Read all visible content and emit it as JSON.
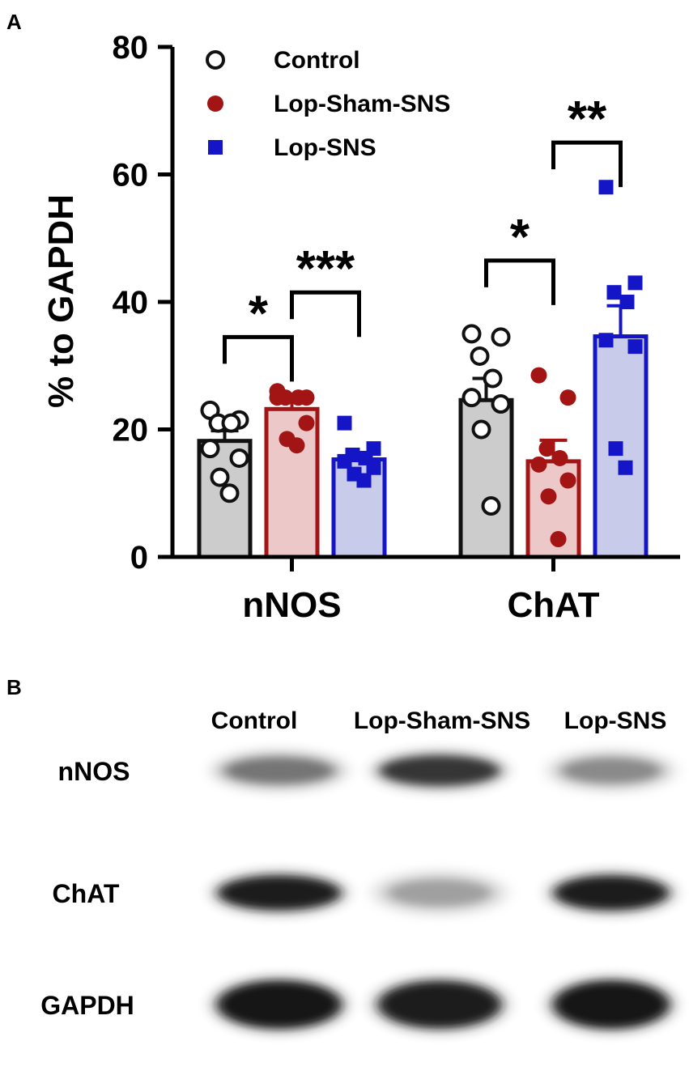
{
  "panels": {
    "a_label": "A",
    "b_label": "B"
  },
  "chart_data": {
    "type": "bar",
    "ylabel": "% to GAPDH",
    "xlabel": "",
    "ylim": [
      0,
      80
    ],
    "yticks": [
      "0",
      "20",
      "40",
      "60",
      "80"
    ],
    "categories": [
      "nNOS",
      "ChAT"
    ],
    "legend_position": "top-left",
    "grid": false,
    "series": [
      {
        "name": "Control",
        "color": "#111111",
        "fill": "#cccccc",
        "marker": "open-circle",
        "values": [
          18.2,
          24.6
        ],
        "sem": [
          1.6,
          3.4
        ],
        "points": [
          [
            23.0,
            21.5,
            21.0,
            21.0,
            17.0,
            15.5,
            12.5,
            10.0
          ],
          [
            35.0,
            34.5,
            31.5,
            28.0,
            25.0,
            24.0,
            20.0,
            8.0
          ]
        ]
      },
      {
        "name": "Lop-Sham-SNS",
        "color": "#a31515",
        "fill": "#ecc8c8",
        "marker": "filled-circle",
        "values": [
          23.2,
          15.0
        ],
        "sem": [
          1.3,
          3.3
        ],
        "points": [
          [
            26.0,
            25.0,
            25.0,
            25.0,
            25.0,
            21.0,
            18.5,
            17.5
          ],
          [
            28.5,
            25.0,
            17.0,
            15.5,
            14.5,
            12.0,
            9.5,
            2.8
          ]
        ]
      },
      {
        "name": "Lop-SNS",
        "color": "#1515c8",
        "fill": "#c8cbea",
        "marker": "filled-square",
        "values": [
          15.3,
          34.6
        ],
        "sem": [
          1.0,
          4.8
        ],
        "points": [
          [
            21.0,
            17.0,
            16.0,
            15.5,
            15.0,
            14.0,
            13.0,
            12.0
          ],
          [
            58.0,
            43.0,
            41.5,
            40.0,
            34.0,
            33.0,
            17.0,
            14.0
          ]
        ]
      }
    ],
    "annotations": [
      {
        "label": "*",
        "category": 0,
        "from": 0,
        "to": 1,
        "y": 34.5
      },
      {
        "label": "***",
        "category": 0,
        "from": 1,
        "to": 2,
        "y": 41.5
      },
      {
        "label": "*",
        "category": 1,
        "from": 0,
        "to": 1,
        "y": 46.5
      },
      {
        "label": "**",
        "category": 1,
        "from": 1,
        "to": 2,
        "y": 65.0
      }
    ]
  },
  "blot": {
    "column_labels": [
      "Control",
      "Lop-Sham-SNS",
      "Lop-SNS"
    ],
    "row_labels": [
      "nNOS",
      "ChAT",
      "GAPDH"
    ],
    "intensities": [
      [
        0.55,
        0.85,
        0.45
      ],
      [
        0.95,
        0.35,
        0.95
      ],
      [
        1.0,
        0.95,
        1.0
      ]
    ]
  }
}
